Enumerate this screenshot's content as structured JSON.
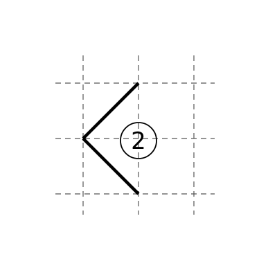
{
  "diagram": {
    "step_marker": {
      "label": "2"
    },
    "colors": {
      "stroke": "#000000",
      "grid": "#555555",
      "background": "#ffffff"
    }
  }
}
